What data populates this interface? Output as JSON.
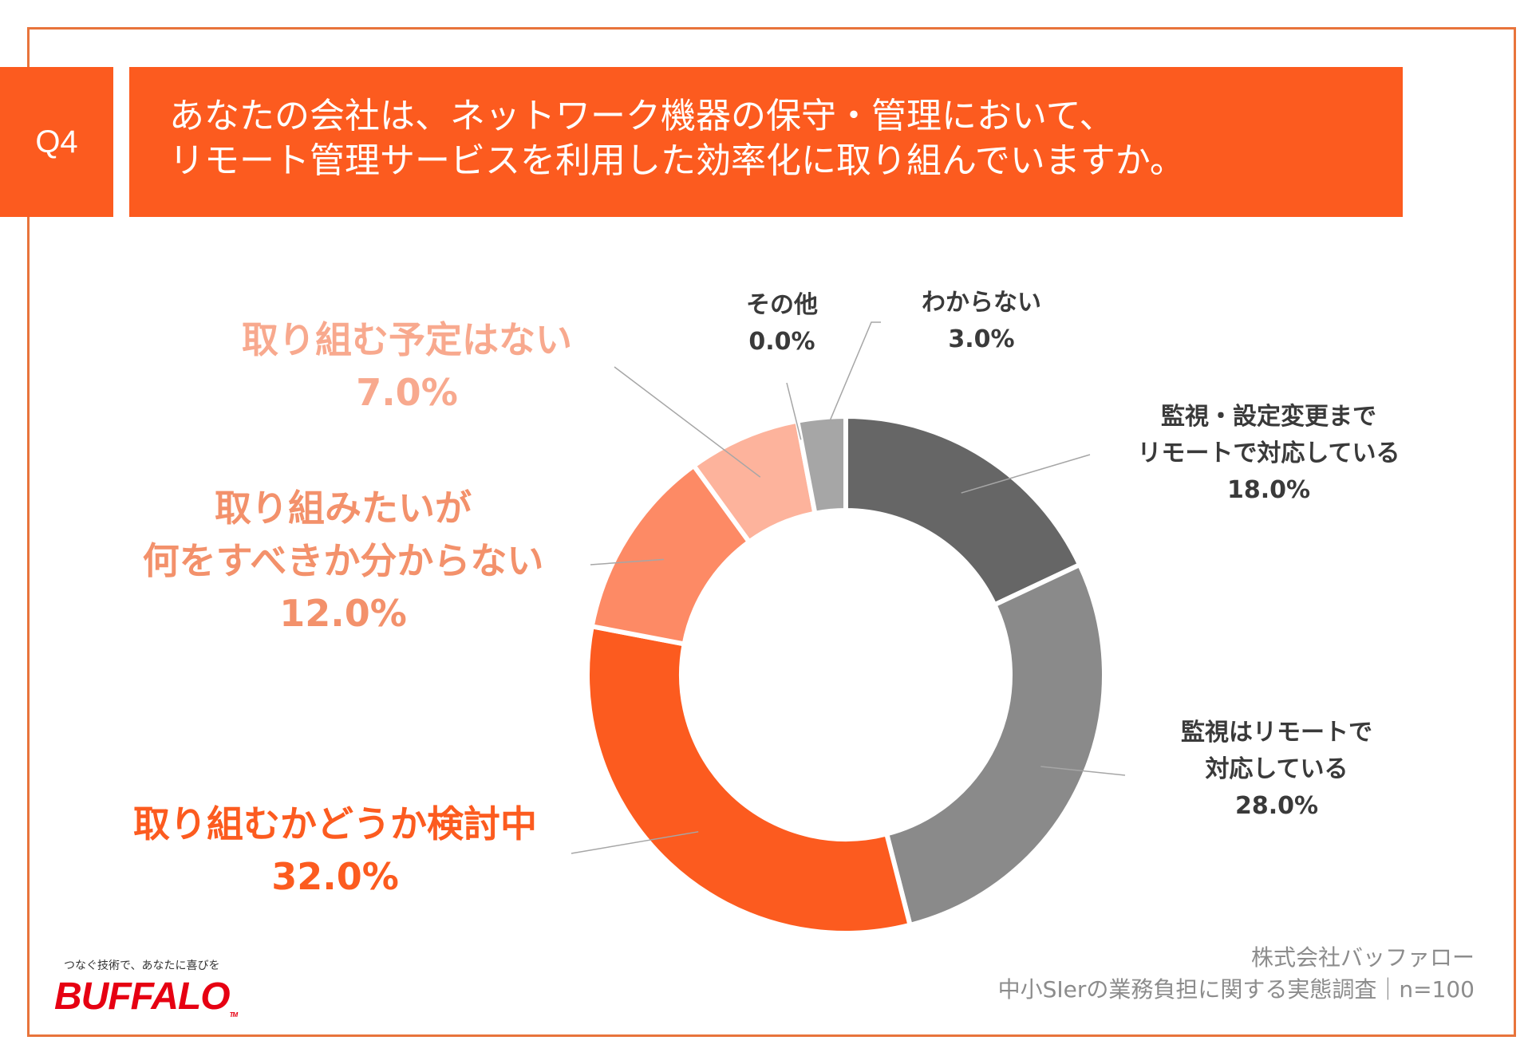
{
  "question_label": "Q4",
  "title_lines": [
    "あなたの会社は、ネットワーク機器の保守・管理において、",
    "リモート管理サービスを利用した効率化に取り組んでいますか。"
  ],
  "colors": {
    "accent": "#fc5b1f",
    "frame": "#e8743b",
    "dark_grey": "#666666",
    "mid_grey": "#8a8a8a",
    "light_grey": "#a6a6a6",
    "orange_mid": "#fd8a65",
    "orange_light": "#fdb39c"
  },
  "chart_data": {
    "type": "pie",
    "variant": "donut",
    "start": "top",
    "direction": "clockwise",
    "segments": [
      {
        "label_lines": [
          "監視・設定変更まで",
          "リモートで対応している"
        ],
        "value": 18.0,
        "value_label": "18.0%",
        "color": "#666666"
      },
      {
        "label_lines": [
          "監視はリモートで",
          "対応している"
        ],
        "value": 28.0,
        "value_label": "28.0%",
        "color": "#8a8a8a"
      },
      {
        "label_lines": [
          "取り組むかどうか検討中"
        ],
        "value": 32.0,
        "value_label": "32.0%",
        "color": "#fc5b1f"
      },
      {
        "label_lines": [
          "取り組みたいが",
          "何をすべきか分からない"
        ],
        "value": 12.0,
        "value_label": "12.0%",
        "color": "#fd8a65"
      },
      {
        "label_lines": [
          "取り組む予定はない"
        ],
        "value": 7.0,
        "value_label": "7.0%",
        "color": "#fdb39c"
      },
      {
        "label_lines": [
          "その他"
        ],
        "value": 0.0,
        "value_label": "0.0%",
        "color": "#c8c8c8"
      },
      {
        "label_lines": [
          "わからない"
        ],
        "value": 3.0,
        "value_label": "3.0%",
        "color": "#a6a6a6"
      }
    ]
  },
  "footer": {
    "company": "株式会社バッファロー",
    "survey": "中小SIerの業務負担に関する実態調査｜n=100"
  },
  "brand": {
    "tagline": "つなぐ技術で、あなたに喜びを",
    "logo_text": "BUFFALO",
    "tm": "TM"
  }
}
